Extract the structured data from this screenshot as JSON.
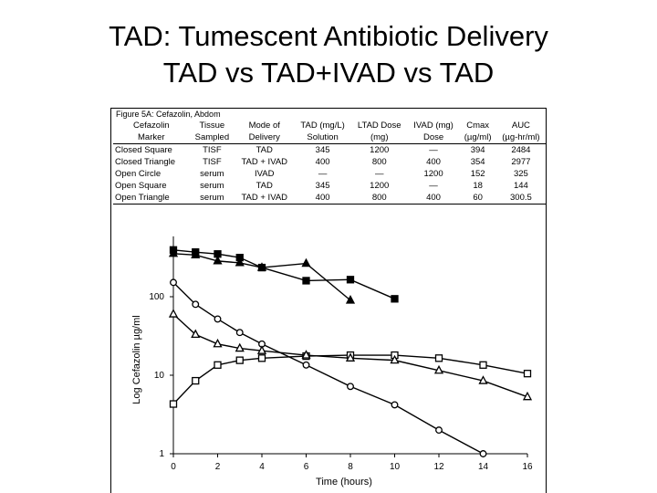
{
  "slide": {
    "title_line1": "TAD:  Tumescent Antibiotic Delivery",
    "title_line2": "TAD vs TAD+IVAD vs TAD"
  },
  "figure_caption": "Figure 5A: Cefazolin, Abdom",
  "table": {
    "headers_line1": [
      "Cefazolin",
      "Tissue",
      "Mode of",
      "TAD (mg/L)",
      "LTAD Dose",
      "IVAD (mg)",
      "Cmax",
      "AUC"
    ],
    "headers_line2": [
      "Marker",
      "Sampled",
      "Delivery",
      "Solution",
      "(mg)",
      "Dose",
      "(µg/ml)",
      "(µg-hr/ml)"
    ],
    "rows": [
      [
        "Closed Square",
        "TISF",
        "TAD",
        "345",
        "1200",
        "—",
        "394",
        "2484"
      ],
      [
        "Closed Triangle",
        "TISF",
        "TAD + IVAD",
        "400",
        "800",
        "400",
        "354",
        "2977"
      ],
      [
        "Open Circle",
        "serum",
        "IVAD",
        "—",
        "—",
        "1200",
        "152",
        "325"
      ],
      [
        "Open Square",
        "serum",
        "TAD",
        "345",
        "1200",
        "—",
        "18",
        "144"
      ],
      [
        "Open Triangle",
        "serum",
        "TAD + IVAD",
        "400",
        "800",
        "400",
        "60",
        "300.5"
      ]
    ]
  },
  "chart_data": {
    "type": "line",
    "xlabel": "Time (hours)",
    "ylabel": "Log  Cefazolin  µg/ml",
    "xlim": [
      0,
      16
    ],
    "ylim": [
      1,
      500
    ],
    "y_scale": "log",
    "x_ticks": [
      "0",
      "2",
      "4",
      "6",
      "8",
      "10",
      "12",
      "14",
      "16"
    ],
    "y_ticks": [
      "1",
      "10",
      "100"
    ],
    "grid": false,
    "series": [
      {
        "marker": "closed-square",
        "x": [
          0,
          1,
          2,
          3,
          4,
          6,
          8,
          10
        ],
        "y": [
          394,
          370,
          350,
          315,
          235,
          160,
          165,
          94
        ]
      },
      {
        "marker": "closed-triangle",
        "x": [
          0,
          1,
          2,
          3,
          4,
          6,
          8
        ],
        "y": [
          354,
          340,
          285,
          270,
          235,
          265,
          90
        ]
      },
      {
        "marker": "open-circle",
        "x": [
          0,
          1,
          2,
          3,
          4,
          6,
          8,
          10,
          12,
          14
        ],
        "y": [
          152,
          80,
          52,
          35,
          25,
          13.5,
          7.2,
          4.2,
          2,
          1
        ]
      },
      {
        "marker": "open-square",
        "x": [
          0,
          1,
          2,
          3,
          4,
          6,
          8,
          10,
          12,
          14,
          16
        ],
        "y": [
          4.3,
          8.5,
          13.5,
          15.5,
          16.5,
          17.5,
          18,
          18,
          16.5,
          13.5,
          10.5
        ]
      },
      {
        "marker": "open-triangle",
        "x": [
          0,
          1,
          2,
          3,
          4,
          6,
          8,
          10,
          12,
          14,
          16
        ],
        "y": [
          60,
          33,
          25,
          22,
          20.5,
          18,
          16.5,
          15.5,
          11.5,
          8.5,
          5.3
        ]
      }
    ]
  }
}
